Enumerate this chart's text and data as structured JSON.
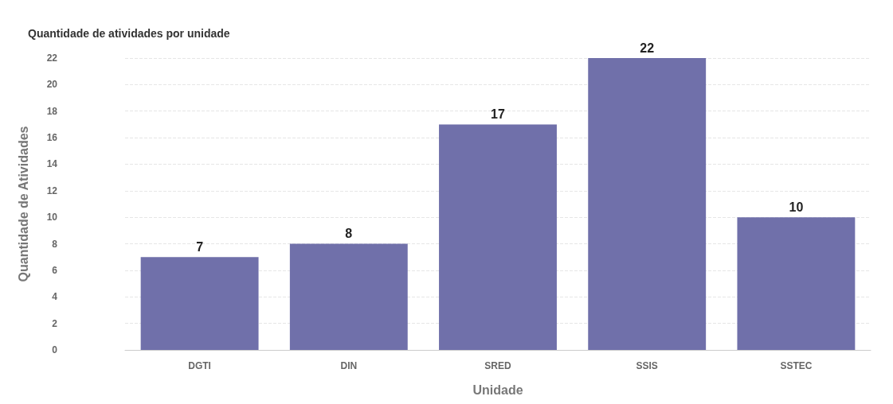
{
  "chart_data": {
    "type": "bar",
    "title": "Quantidade de atividades por unidade",
    "xlabel": "Unidade",
    "ylabel": "Quantidade de Atividades",
    "categories": [
      "DGTI",
      "DIN",
      "SRED",
      "SSIS",
      "SSTEC"
    ],
    "values": [
      7,
      8,
      17,
      22,
      10
    ],
    "color": "#7070aa",
    "ylim": [
      0,
      22
    ],
    "yticks": [
      0,
      2,
      4,
      6,
      8,
      10,
      12,
      14,
      16,
      18,
      20,
      22
    ],
    "grid": "y",
    "data_labels": true
  }
}
